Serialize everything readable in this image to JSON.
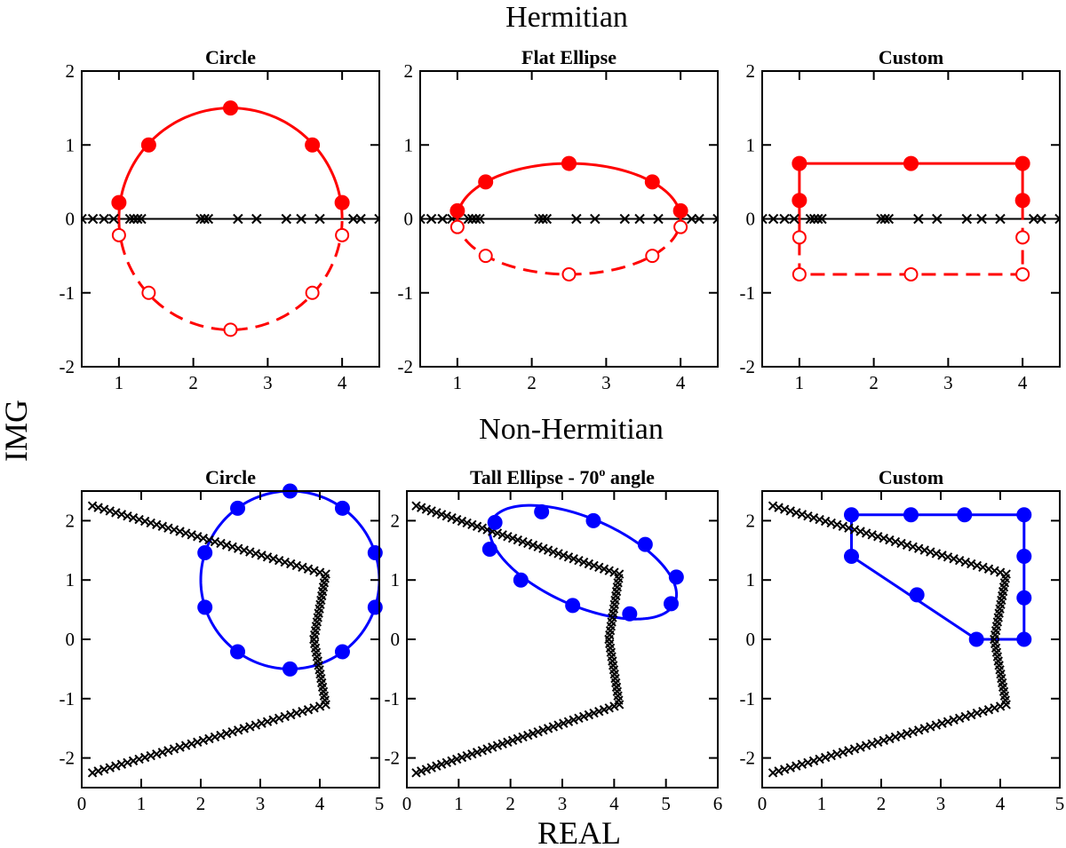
{
  "figure": {
    "row_titles": [
      "Hermitian",
      "Non-Hermitian"
    ],
    "ylabel": "IMG",
    "xlabel": "REAL"
  },
  "colors": {
    "hermitian": "#ff0000",
    "non_hermitian": "#0000ff",
    "eigen": "#000000",
    "axes": "#000000"
  },
  "chart_data": [
    {
      "type": "scatter",
      "title": "Circle",
      "xlim": [
        0.5,
        4.5
      ],
      "ylim": [
        -2,
        2
      ],
      "xticks": [
        1,
        2,
        3,
        4
      ],
      "yticks": [
        -2,
        -1,
        0,
        1,
        2
      ],
      "xtick_labels": [
        "1",
        "2",
        "3",
        "4"
      ],
      "ytick_labels": [
        "-2",
        "-1",
        "0",
        "1",
        "2"
      ],
      "zero_line": true,
      "eigenvalues": {
        "x": [
          0.5,
          0.65,
          0.8,
          0.93,
          1.15,
          1.2,
          1.25,
          1.3,
          2.1,
          2.15,
          2.2,
          2.6,
          2.85,
          3.25,
          3.45,
          3.7,
          4.15,
          4.25,
          4.5
        ],
        "y": []
      },
      "contour": {
        "shape": "ellipse",
        "center": [
          2.5,
          0
        ],
        "rx": 1.5,
        "ry": 1.5,
        "angle_deg": 0,
        "upper_solid": true,
        "lower_dashed": true
      },
      "nodes_filled": {
        "x": [
          1,
          1.4,
          2.5,
          3.6,
          4
        ],
        "y": [
          0.22,
          1.0,
          1.5,
          1.0,
          0.22
        ]
      },
      "nodes_open": {
        "x": [
          1,
          1.4,
          2.5,
          3.6,
          4
        ],
        "y": [
          -0.22,
          -1.0,
          -1.5,
          -1.0,
          -0.22
        ]
      }
    },
    {
      "type": "scatter",
      "title": "Flat Ellipse",
      "xlim": [
        0.5,
        4.5
      ],
      "ylim": [
        -2,
        2
      ],
      "xticks": [
        1,
        2,
        3,
        4
      ],
      "yticks": [
        -2,
        -1,
        0,
        1,
        2
      ],
      "xtick_labels": [
        "1",
        "2",
        "3",
        "4"
      ],
      "ytick_labels": [
        "-2",
        "-1",
        "0",
        "1",
        "2"
      ],
      "zero_line": true,
      "eigenvalues": {
        "x": [
          0.5,
          0.65,
          0.8,
          0.93,
          1.15,
          1.2,
          1.25,
          1.3,
          2.1,
          2.15,
          2.2,
          2.6,
          2.85,
          3.25,
          3.45,
          3.7,
          4.15,
          4.25,
          4.5
        ],
        "y": []
      },
      "contour": {
        "shape": "ellipse",
        "center": [
          2.5,
          0
        ],
        "rx": 1.5,
        "ry": 0.75,
        "angle_deg": 0,
        "upper_solid": true,
        "lower_dashed": true
      },
      "nodes_filled": {
        "x": [
          1,
          1.38,
          2.5,
          3.62,
          4
        ],
        "y": [
          0.11,
          0.5,
          0.75,
          0.5,
          0.11
        ]
      },
      "nodes_open": {
        "x": [
          1,
          1.38,
          2.5,
          3.62,
          4
        ],
        "y": [
          -0.11,
          -0.5,
          -0.75,
          -0.5,
          -0.11
        ]
      }
    },
    {
      "type": "scatter",
      "title": "Custom",
      "xlim": [
        0.5,
        4.5
      ],
      "ylim": [
        -2,
        2
      ],
      "xticks": [
        1,
        2,
        3,
        4
      ],
      "yticks": [
        -2,
        -1,
        0,
        1,
        2
      ],
      "xtick_labels": [
        "1",
        "2",
        "3",
        "4"
      ],
      "ytick_labels": [
        "-2",
        "-1",
        "0",
        "1",
        "2"
      ],
      "zero_line": true,
      "eigenvalues": {
        "x": [
          0.5,
          0.65,
          0.8,
          0.93,
          1.15,
          1.2,
          1.25,
          1.3,
          2.1,
          2.15,
          2.2,
          2.6,
          2.85,
          3.25,
          3.45,
          3.7,
          4.15,
          4.25,
          4.5
        ],
        "y": []
      },
      "contour": {
        "shape": "rectangle",
        "x0": 1,
        "x1": 4,
        "y0": -0.75,
        "y1": 0.75,
        "upper_solid": true,
        "lower_dashed": true
      },
      "nodes_filled": {
        "x": [
          1,
          1,
          2.5,
          4,
          4
        ],
        "y": [
          0.25,
          0.75,
          0.75,
          0.75,
          0.25
        ]
      },
      "nodes_open": {
        "x": [
          1,
          1,
          2.5,
          4,
          4
        ],
        "y": [
          -0.25,
          -0.75,
          -0.75,
          -0.75,
          -0.25
        ]
      }
    },
    {
      "type": "scatter",
      "title": "Circle",
      "xlim": [
        0,
        5
      ],
      "ylim": [
        -2.5,
        2.5
      ],
      "xticks": [
        0,
        1,
        2,
        3,
        4,
        5
      ],
      "yticks": [
        -2,
        -1,
        0,
        1,
        2
      ],
      "xtick_labels": [
        "0",
        "1",
        "2",
        "3",
        "4",
        "5"
      ],
      "ytick_labels": [
        "-2",
        "-1",
        "0",
        "1",
        "2"
      ],
      "zero_line": false,
      "eigen_path": [
        [
          0.18,
          2.25
        ],
        [
          4.1,
          1.1
        ],
        [
          3.9,
          0
        ],
        [
          4.1,
          -1.1
        ],
        [
          0.18,
          -2.25
        ]
      ],
      "eigen_counts": [
        40,
        15,
        15,
        40
      ],
      "contour": {
        "shape": "ellipse",
        "center": [
          3.5,
          1.0
        ],
        "rx": 1.5,
        "ry": 1.5,
        "angle_deg": 0
      },
      "nodes_filled": {
        "x": [
          3.5,
          4.38,
          4.93,
          4.93,
          4.38,
          3.5,
          2.62,
          2.07,
          2.07,
          2.62
        ],
        "y": [
          2.5,
          2.21,
          1.46,
          0.54,
          -0.21,
          -0.5,
          -0.21,
          0.54,
          1.46,
          2.21
        ]
      }
    },
    {
      "type": "scatter",
      "title": "Tall Ellipse - 70",
      "title_superscript": "o",
      "title_suffix": " angle",
      "xlim": [
        0,
        6
      ],
      "ylim": [
        -2.5,
        2.5
      ],
      "xticks": [
        0,
        1,
        2,
        3,
        4,
        5,
        6
      ],
      "yticks": [
        -2,
        -1,
        0,
        1,
        2
      ],
      "xtick_labels": [
        "0",
        "1",
        "2",
        "3",
        "4",
        "5",
        "6"
      ],
      "ytick_labels": [
        "-2",
        "-1",
        "0",
        "1",
        "2"
      ],
      "zero_line": false,
      "eigen_path": [
        [
          0.18,
          2.25
        ],
        [
          4.1,
          1.1
        ],
        [
          3.9,
          0
        ],
        [
          4.1,
          -1.1
        ],
        [
          0.18,
          -2.25
        ]
      ],
      "eigen_counts": [
        40,
        15,
        15,
        40
      ],
      "contour": {
        "shape": "ellipse",
        "center": [
          3.4,
          1.3
        ],
        "rx": 1.9,
        "ry": 0.75,
        "angle_deg": -20
      },
      "nodes_filled": {
        "x": [
          2.6,
          3.6,
          4.6,
          5.2,
          5.1,
          4.3,
          3.2,
          2.2,
          1.6,
          1.7
        ],
        "y": [
          2.15,
          2.0,
          1.6,
          1.05,
          0.6,
          0.43,
          0.57,
          1.0,
          1.52,
          1.97
        ]
      }
    },
    {
      "type": "scatter",
      "title": "Custom",
      "xlim": [
        0,
        5
      ],
      "ylim": [
        -2.5,
        2.5
      ],
      "xticks": [
        0,
        1,
        2,
        3,
        4,
        5
      ],
      "yticks": [
        -2,
        -1,
        0,
        1,
        2
      ],
      "xtick_labels": [
        "0",
        "1",
        "2",
        "3",
        "4",
        "5"
      ],
      "ytick_labels": [
        "-2",
        "-1",
        "0",
        "1",
        "2"
      ],
      "zero_line": false,
      "eigen_path": [
        [
          0.18,
          2.25
        ],
        [
          4.1,
          1.1
        ],
        [
          3.9,
          0
        ],
        [
          4.1,
          -1.1
        ],
        [
          0.18,
          -2.25
        ]
      ],
      "eigen_counts": [
        40,
        15,
        15,
        40
      ],
      "contour": {
        "shape": "polygon",
        "points": [
          [
            1.5,
            2.1
          ],
          [
            4.4,
            2.1
          ],
          [
            4.4,
            0
          ],
          [
            3.6,
            0
          ],
          [
            1.5,
            1.4
          ]
        ]
      },
      "nodes_filled": {
        "x": [
          1.5,
          2.5,
          3.4,
          4.4,
          4.4,
          4.4,
          4.4,
          3.6,
          2.6,
          1.5
        ],
        "y": [
          2.1,
          2.1,
          2.1,
          2.1,
          1.4,
          0.7,
          0,
          0,
          0.75,
          1.4
        ]
      }
    }
  ]
}
